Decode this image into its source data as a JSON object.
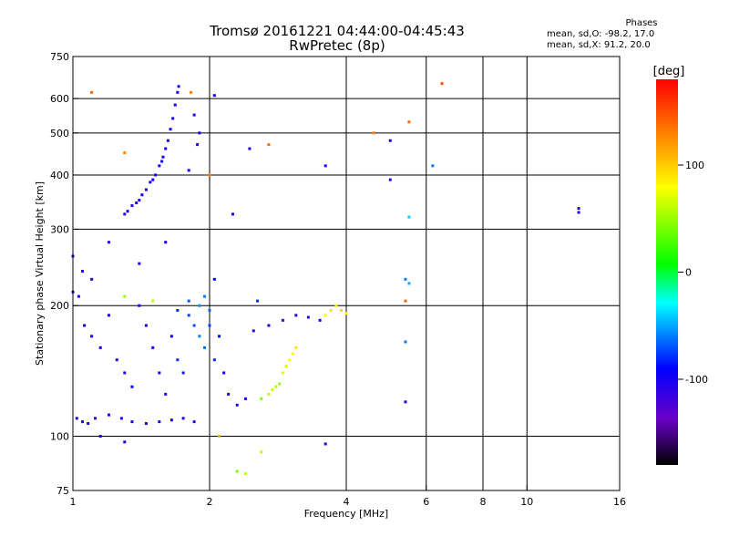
{
  "title_line1": "Tromsø 20161221 04:44:00-04:45:43",
  "title_line2": "RwPretec (8p)",
  "phases": {
    "header": "Phases",
    "line_o": "mean, sd,O: -98.2, 17.0",
    "line_x": "mean, sd,X:  91.2, 20.0"
  },
  "colorbar": {
    "unit": "[deg]",
    "ticks": [
      {
        "value": 100,
        "label": "100"
      },
      {
        "value": 0,
        "label": "0"
      },
      {
        "value": -100,
        "label": "-100"
      }
    ],
    "range": [
      -180,
      180
    ],
    "colors": [
      "#000000",
      "#6a00c8",
      "#0000ff",
      "#00ffff",
      "#00ff00",
      "#ffff00",
      "#ff8000",
      "#ff0000"
    ]
  },
  "chart_data": {
    "type": "scatter",
    "title": "Tromsø 20161221 04:44:00-04:45:43",
    "subtitle": "RwPretec (8p)",
    "xlabel": "Frequency [MHz]",
    "ylabel": "Stationary phase Virtual Height [km]",
    "x_scale": "log",
    "y_scale": "log",
    "xlim": [
      1,
      16
    ],
    "ylim": [
      75,
      750
    ],
    "x_ticks": [
      {
        "value": 1,
        "label": "1"
      },
      {
        "value": 2,
        "label": "2"
      },
      {
        "value": 4,
        "label": "4"
      },
      {
        "value": 6,
        "label": "6"
      },
      {
        "value": 8,
        "label": "8"
      },
      {
        "value": 10,
        "label": "10"
      },
      {
        "value": 16,
        "label": "16"
      }
    ],
    "y_ticks": [
      {
        "value": 75,
        "label": "75"
      },
      {
        "value": 100,
        "label": "100"
      },
      {
        "value": 200,
        "label": "200"
      },
      {
        "value": 300,
        "label": "300"
      },
      {
        "value": 400,
        "label": "400"
      },
      {
        "value": 500,
        "label": "500"
      },
      {
        "value": 600,
        "label": "600"
      },
      {
        "value": 750,
        "label": "750"
      }
    ],
    "grid": true,
    "x_grid_lines": [
      2,
      4,
      6,
      8,
      10
    ],
    "y_grid_lines": [
      100,
      200,
      300,
      400,
      500,
      600
    ],
    "series": [
      {
        "points": [
          [
            1.32,
            330,
            -100
          ],
          [
            1.35,
            340,
            -105
          ],
          [
            1.38,
            345,
            -100
          ],
          [
            1.42,
            360,
            -95
          ],
          [
            1.45,
            370,
            -100
          ],
          [
            1.48,
            385,
            -98
          ],
          [
            1.52,
            400,
            -100
          ],
          [
            1.55,
            420,
            -95
          ],
          [
            1.58,
            440,
            -100
          ],
          [
            1.6,
            460,
            -98
          ],
          [
            1.62,
            480,
            -100
          ],
          [
            1.64,
            510,
            -95
          ],
          [
            1.66,
            540,
            -100
          ],
          [
            1.68,
            580,
            -98
          ],
          [
            1.7,
            620,
            -100
          ],
          [
            1.71,
            640,
            -96
          ],
          [
            1.3,
            325,
            -100
          ],
          [
            1.4,
            350,
            -110
          ],
          [
            1.5,
            390,
            -102
          ],
          [
            1.57,
            430,
            -99
          ],
          [
            1.02,
            110,
            -100
          ],
          [
            1.05,
            108,
            -95
          ],
          [
            1.08,
            107,
            -100
          ],
          [
            1.12,
            110,
            -110
          ],
          [
            1.2,
            112,
            -100
          ],
          [
            1.28,
            110,
            -105
          ],
          [
            1.35,
            108,
            -100
          ],
          [
            1.45,
            107,
            -98
          ],
          [
            1.55,
            108,
            -100
          ],
          [
            1.65,
            109,
            -95
          ],
          [
            1.75,
            110,
            -100
          ],
          [
            1.85,
            108,
            -100
          ],
          [
            1.0,
            215,
            -110
          ],
          [
            1.03,
            210,
            -100
          ],
          [
            1.06,
            180,
            -95
          ],
          [
            1.1,
            170,
            -100
          ],
          [
            1.15,
            160,
            -105
          ],
          [
            1.2,
            190,
            -100
          ],
          [
            1.25,
            150,
            -110
          ],
          [
            1.3,
            140,
            -100
          ],
          [
            1.35,
            130,
            -95
          ],
          [
            1.4,
            200,
            -100
          ],
          [
            1.45,
            180,
            -100
          ],
          [
            1.5,
            160,
            -105
          ],
          [
            1.55,
            140,
            -100
          ],
          [
            1.6,
            125,
            -110
          ],
          [
            1.65,
            170,
            -90
          ],
          [
            1.7,
            150,
            -80
          ],
          [
            1.75,
            140,
            -85
          ],
          [
            1.8,
            190,
            -75
          ],
          [
            1.85,
            180,
            -70
          ],
          [
            1.9,
            170,
            -60
          ],
          [
            1.95,
            160,
            -65
          ],
          [
            2.0,
            180,
            -75
          ],
          [
            2.05,
            150,
            -80
          ],
          [
            2.1,
            170,
            -90
          ],
          [
            2.15,
            140,
            -95
          ],
          [
            2.2,
            125,
            -100
          ],
          [
            2.3,
            118,
            -105
          ],
          [
            2.4,
            122,
            -110
          ],
          [
            1.9,
            200,
            -55
          ],
          [
            1.95,
            210,
            -60
          ],
          [
            2.0,
            195,
            -65
          ],
          [
            1.8,
            205,
            -70
          ],
          [
            1.7,
            195,
            -80
          ],
          [
            2.6,
            122,
            40
          ],
          [
            2.7,
            125,
            60
          ],
          [
            2.8,
            130,
            55
          ],
          [
            2.9,
            140,
            70
          ],
          [
            3.0,
            150,
            80
          ],
          [
            3.05,
            155,
            75
          ],
          [
            3.1,
            160,
            90
          ],
          [
            2.75,
            128,
            65
          ],
          [
            2.85,
            132,
            50
          ],
          [
            2.95,
            145,
            65
          ],
          [
            2.5,
            175,
            -110
          ],
          [
            2.7,
            180,
            -100
          ],
          [
            2.9,
            185,
            -120
          ],
          [
            3.1,
            190,
            -105
          ],
          [
            3.3,
            188,
            -110
          ],
          [
            3.5,
            185,
            -100
          ],
          [
            3.6,
            190,
            80
          ],
          [
            3.7,
            195,
            90
          ],
          [
            3.8,
            200,
            85
          ],
          [
            3.9,
            195,
            95
          ],
          [
            4.0,
            192,
            80
          ],
          [
            1.0,
            260,
            -100
          ],
          [
            1.05,
            240,
            -105
          ],
          [
            1.1,
            230,
            -100
          ],
          [
            1.2,
            280,
            -110
          ],
          [
            1.4,
            250,
            -100
          ],
          [
            1.6,
            280,
            -98
          ],
          [
            2.05,
            230,
            -90
          ],
          [
            1.15,
            100,
            -100
          ],
          [
            1.3,
            97,
            -95
          ],
          [
            2.1,
            100,
            110
          ],
          [
            2.6,
            92,
            60
          ],
          [
            2.3,
            83,
            40
          ],
          [
            2.4,
            82,
            60
          ],
          [
            3.6,
            96,
            -110
          ],
          [
            1.1,
            620,
            140
          ],
          [
            1.82,
            620,
            130
          ],
          [
            2.05,
            610,
            -100
          ],
          [
            1.85,
            550,
            -105
          ],
          [
            1.88,
            470,
            -100
          ],
          [
            1.8,
            410,
            -95
          ],
          [
            1.9,
            500,
            -98
          ],
          [
            2.45,
            460,
            -105
          ],
          [
            2.7,
            470,
            140
          ],
          [
            2.25,
            325,
            -100
          ],
          [
            1.3,
            450,
            130
          ],
          [
            3.6,
            420,
            -100
          ],
          [
            4.6,
            500,
            130
          ],
          [
            5.0,
            480,
            -100
          ],
          [
            5.5,
            530,
            140
          ],
          [
            5.0,
            390,
            -105
          ],
          [
            6.2,
            420,
            -60
          ],
          [
            6.5,
            650,
            150
          ],
          [
            5.5,
            320,
            -40
          ],
          [
            5.4,
            230,
            -60
          ],
          [
            5.5,
            225,
            -50
          ],
          [
            5.4,
            205,
            140
          ],
          [
            5.4,
            165,
            -60
          ],
          [
            5.4,
            120,
            -100
          ],
          [
            13.0,
            335,
            -100
          ],
          [
            13.0,
            328,
            -100
          ],
          [
            2.0,
            400,
            130
          ],
          [
            1.3,
            210,
            50
          ],
          [
            1.5,
            205,
            60
          ],
          [
            2.55,
            205,
            -80
          ]
        ]
      }
    ]
  }
}
